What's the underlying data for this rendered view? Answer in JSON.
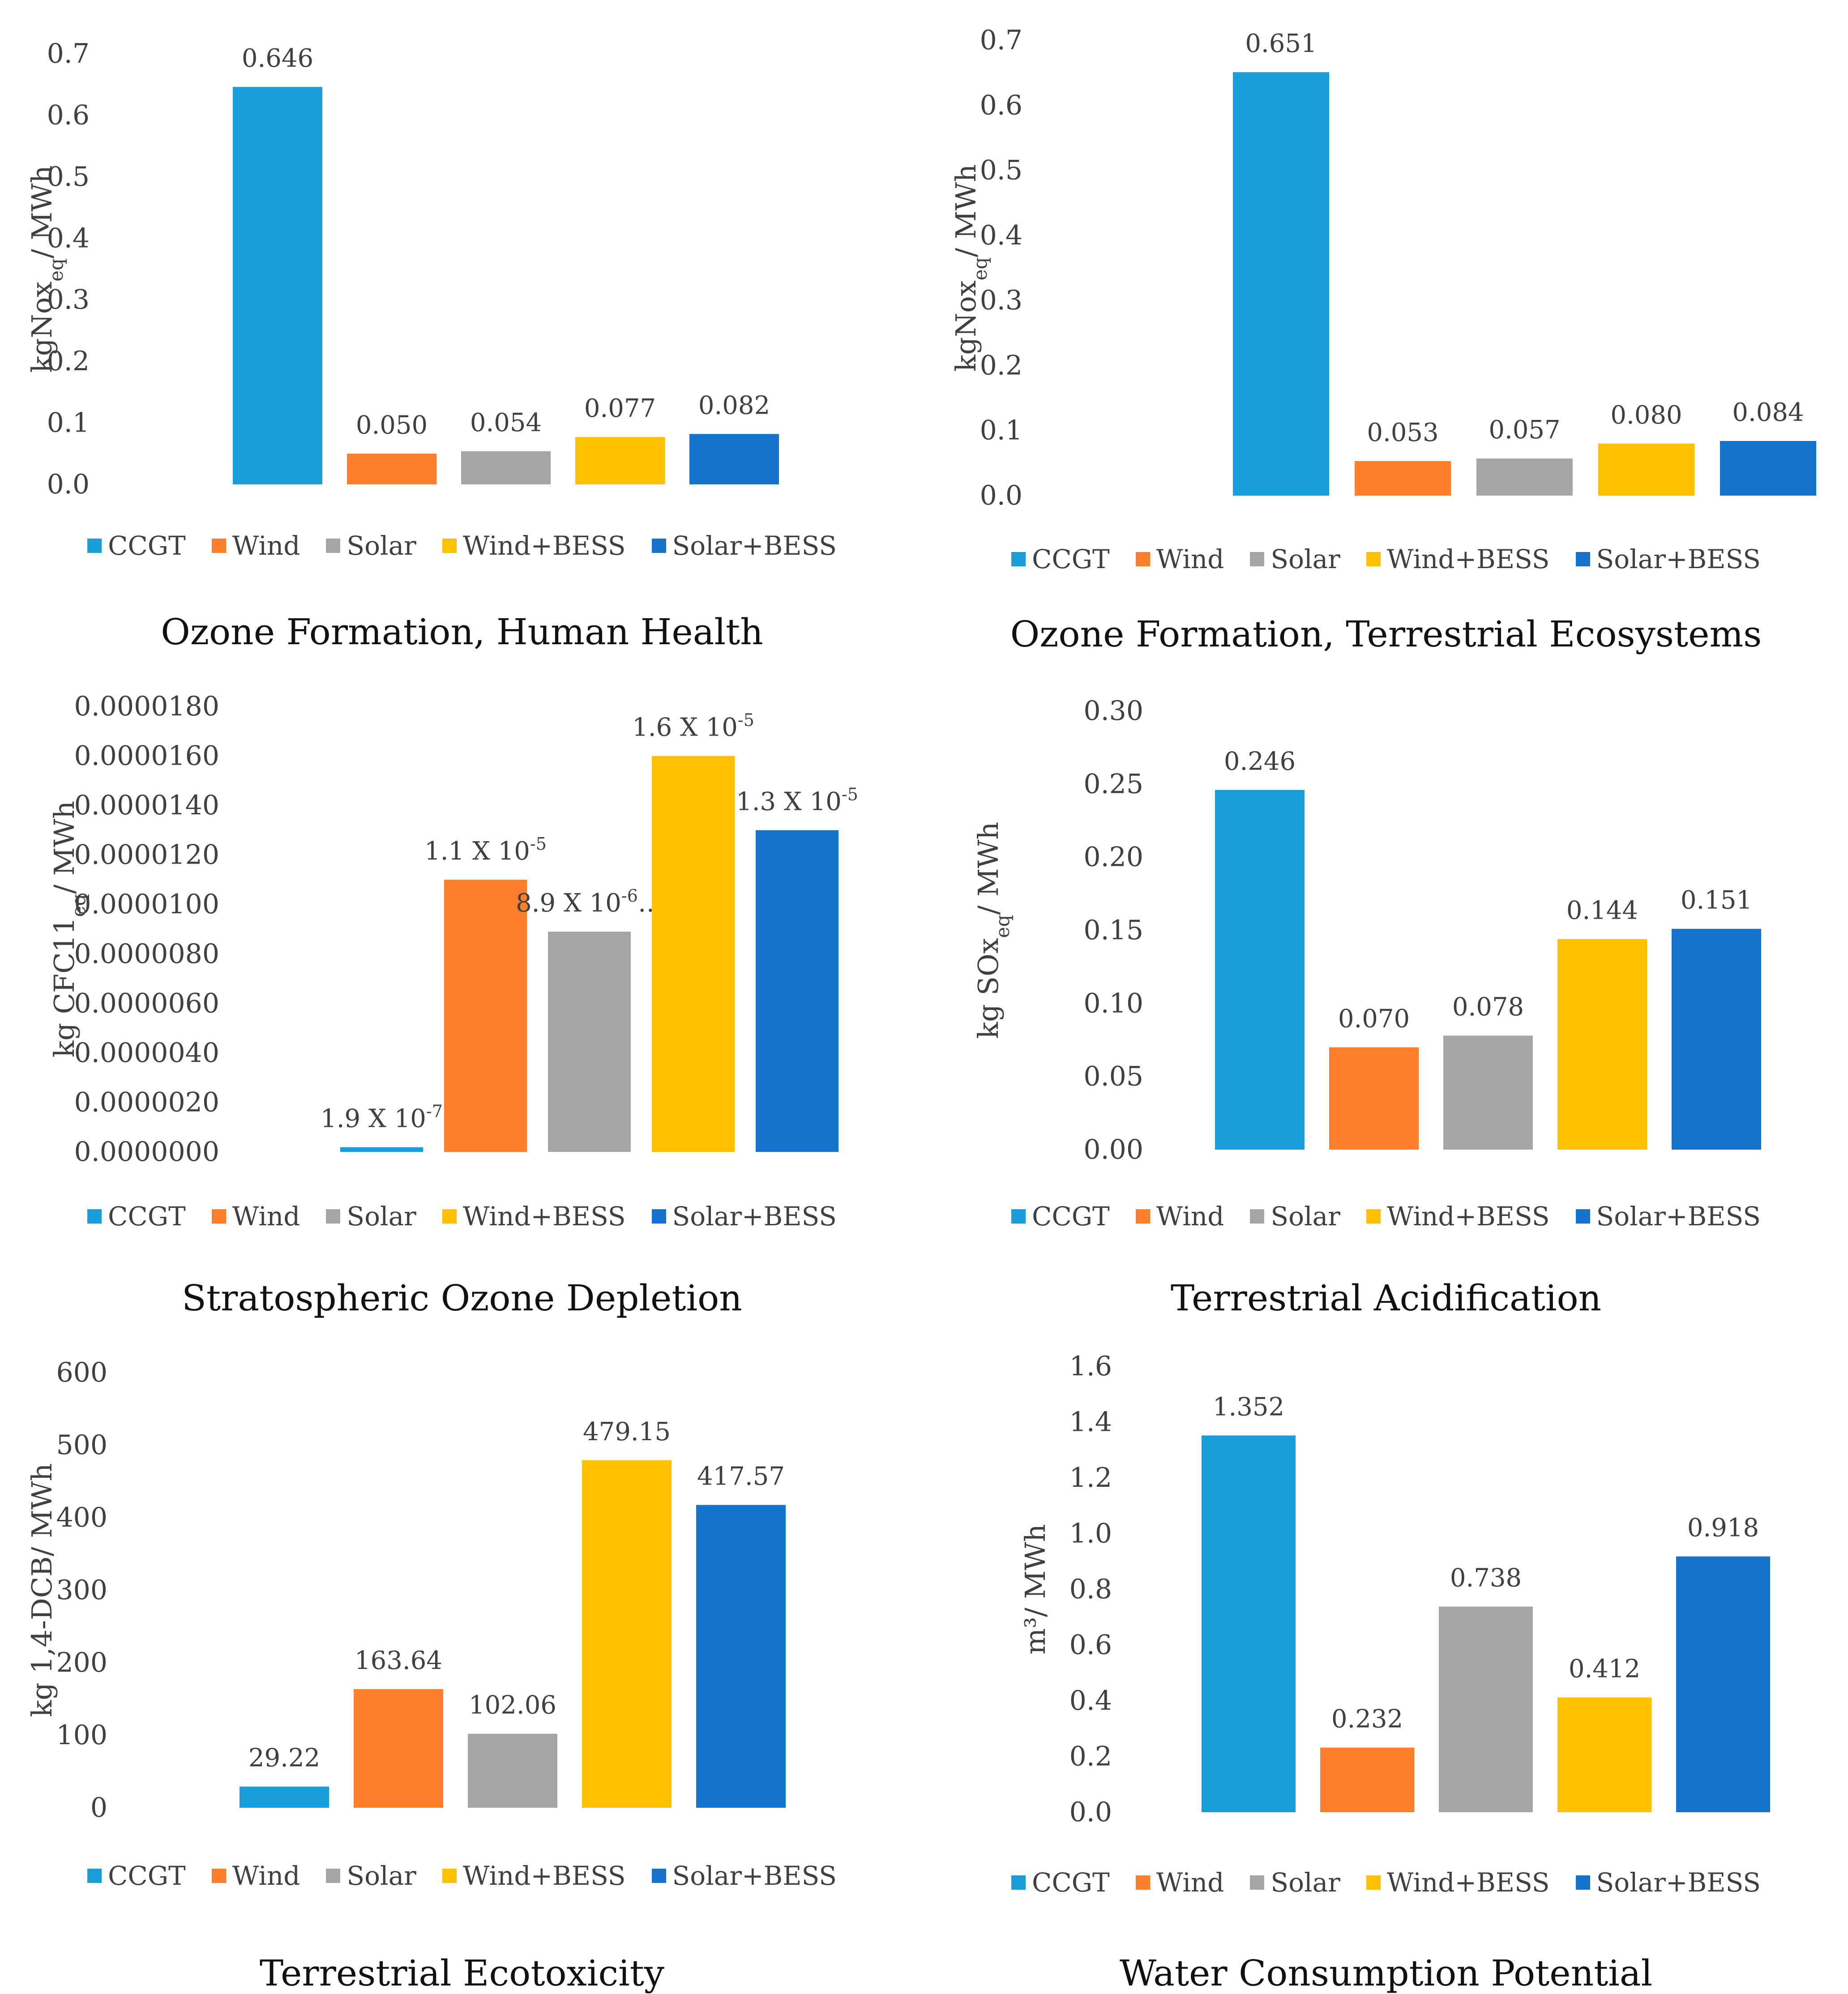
{
  "legend": [
    {
      "name": "CCGT",
      "color": "#1a9ed9"
    },
    {
      "name": "Wind",
      "color": "#fd7f2c"
    },
    {
      "name": "Solar",
      "color": "#a5a5a5"
    },
    {
      "name": "Wind+BESS",
      "color": "#ffc000"
    },
    {
      "name": "Solar+BESS",
      "color": "#1573cc"
    }
  ],
  "chart_data": [
    {
      "type": "bar",
      "title": "Ozone Formation, Human Health",
      "ylabel": "kgNox",
      "ylabel_sub": "eq",
      "ylabel_tail": "/ MWh",
      "categories": [
        "CCGT",
        "Wind",
        "Solar",
        "Wind+BESS",
        "Solar+BESS"
      ],
      "values": [
        0.646,
        0.05,
        0.054,
        0.077,
        0.082
      ],
      "data_labels": [
        "0.646",
        "0.050",
        "0.054",
        "0.077",
        "0.082"
      ],
      "ylim": [
        0,
        0.7
      ],
      "yticks": [
        "0.0",
        "0.1",
        "0.2",
        "0.3",
        "0.4",
        "0.5",
        "0.6",
        "0.7"
      ]
    },
    {
      "type": "bar",
      "title": "Ozone Formation, Terrestrial Ecosystems",
      "ylabel": "kgNox",
      "ylabel_sub": "eq",
      "ylabel_tail": "/ MWh",
      "categories": [
        "CCGT",
        "Wind",
        "Solar",
        "Wind+BESS",
        "Solar+BESS"
      ],
      "values": [
        0.651,
        0.053,
        0.057,
        0.08,
        0.084
      ],
      "data_labels": [
        "0.651",
        "0.053",
        "0.057",
        "0.080",
        "0.084"
      ],
      "ylim": [
        0,
        0.7
      ],
      "yticks": [
        "0.0",
        "0.1",
        "0.2",
        "0.3",
        "0.4",
        "0.5",
        "0.6",
        "0.7"
      ]
    },
    {
      "type": "bar",
      "title": "Stratospheric Ozone Depletion",
      "ylabel": "kg CFC11",
      "ylabel_sub": "eq",
      "ylabel_tail": "/ MWh",
      "categories": [
        "CCGT",
        "Wind",
        "Solar",
        "Wind+BESS",
        "Solar+BESS"
      ],
      "values": [
        1.9e-07,
        1.1e-05,
        8.9e-06,
        1.6e-05,
        1.3e-05
      ],
      "data_labels": [
        "1.9 X 10-7",
        "1.1 X 10-5",
        "8.9 X 10-6…",
        "1.6 X 10-5",
        "1.3 X 10-5"
      ],
      "ylim": [
        0,
        1.8e-05
      ],
      "yticks": [
        "0.0000000",
        "0.0000020",
        "0.0000040",
        "0.0000060",
        "0.0000080",
        "0.0000100",
        "0.0000120",
        "0.0000140",
        "0.0000160",
        "0.0000180"
      ]
    },
    {
      "type": "bar",
      "title": "Terrestrial Acidification",
      "ylabel": "kg SOx",
      "ylabel_sub": "eq",
      "ylabel_tail": "/ MWh",
      "categories": [
        "CCGT",
        "Wind",
        "Solar",
        "Wind+BESS",
        "Solar+BESS"
      ],
      "values": [
        0.246,
        0.07,
        0.078,
        0.144,
        0.151
      ],
      "data_labels": [
        "0.246",
        "0.070",
        "0.078",
        "0.144",
        "0.151"
      ],
      "ylim": [
        0,
        0.3
      ],
      "yticks": [
        "0.00",
        "0.05",
        "0.10",
        "0.15",
        "0.20",
        "0.25",
        "0.30"
      ]
    },
    {
      "type": "bar",
      "title": "Terrestrial Ecotoxicity",
      "ylabel": "kg 1,4-DCB/ MWh",
      "ylabel_sub": "",
      "ylabel_tail": "",
      "categories": [
        "CCGT",
        "Wind",
        "Solar",
        "Wind+BESS",
        "Solar+BESS"
      ],
      "values": [
        29.22,
        163.64,
        102.06,
        479.15,
        417.57
      ],
      "data_labels": [
        "29.22",
        "163.64",
        "102.06",
        "479.15",
        "417.57"
      ],
      "ylim": [
        0,
        600
      ],
      "yticks": [
        "0",
        "100",
        "200",
        "300",
        "400",
        "500",
        "600"
      ]
    },
    {
      "type": "bar",
      "title": "Water Consumption Potential",
      "ylabel": "m³/ MWh",
      "ylabel_sub": "",
      "ylabel_tail": "",
      "categories": [
        "CCGT",
        "Wind",
        "Solar",
        "Wind+BESS",
        "Solar+BESS"
      ],
      "values": [
        1.352,
        0.232,
        0.738,
        0.412,
        0.918
      ],
      "data_labels": [
        "1.352",
        "0.232",
        "0.738",
        "0.412",
        "0.918"
      ],
      "ylim": [
        0,
        1.6
      ],
      "yticks": [
        "0.0",
        "0.2",
        "0.4",
        "0.6",
        "0.8",
        "1.0",
        "1.2",
        "1.4",
        "1.6"
      ]
    }
  ]
}
